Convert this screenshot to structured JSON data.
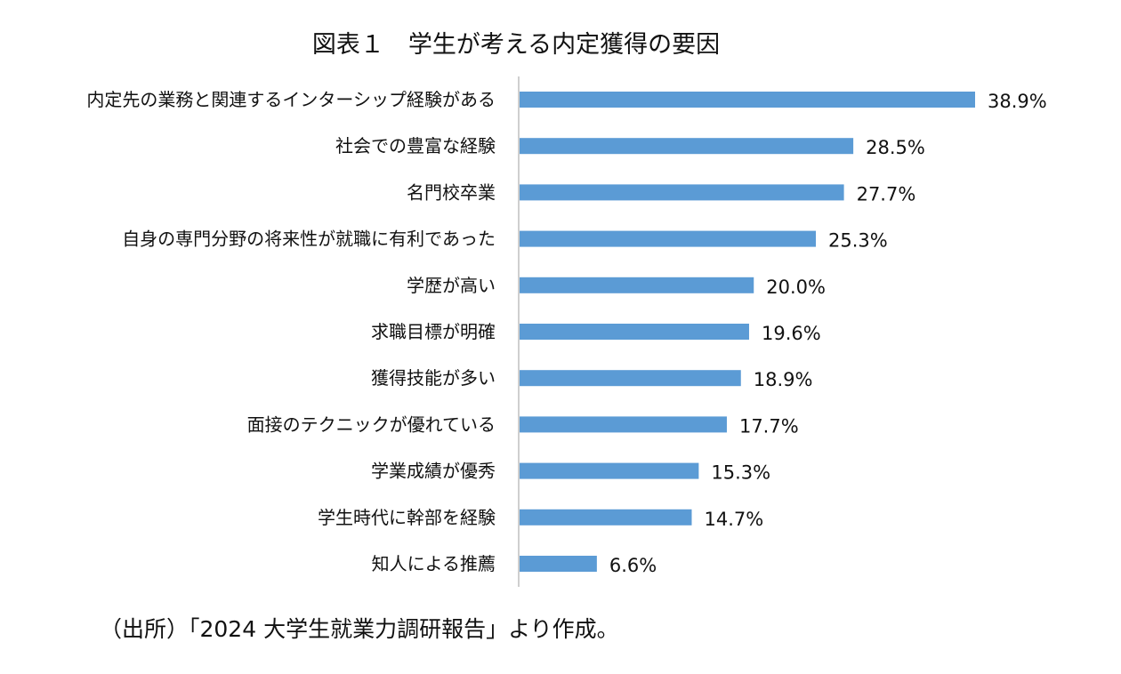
{
  "title": "図表１　学生が考える内定獲得の要因",
  "source": "（出所）「2024 大学生就業力調研報告」より作成。",
  "colors": {
    "bar": "#5b9bd5",
    "axis": "#bfbfbf"
  },
  "chart_data": {
    "type": "bar",
    "orientation": "horizontal",
    "title": "図表１　学生が考える内定獲得の要因",
    "xlabel": "",
    "ylabel": "",
    "xlim": [
      0,
      40
    ],
    "grid": false,
    "legend": "none",
    "categories": [
      "内定先の業務と関連するインターシップ経験がある",
      "社会での豊富な経験",
      "名門校卒業",
      "自身の専門分野の将来性が就職に有利であった",
      "学歴が高い",
      "求職目標が明確",
      "獲得技能が多い",
      "面接のテクニックが優れている",
      "学業成績が優秀",
      "学生時代に幹部を経験",
      "知人による推薦"
    ],
    "values": [
      38.9,
      28.5,
      27.7,
      25.3,
      20.0,
      19.6,
      18.9,
      17.7,
      15.3,
      14.7,
      6.6
    ],
    "value_labels": [
      "38.9%",
      "28.5%",
      "27.7%",
      "25.3%",
      "20.0%",
      "19.6%",
      "18.9%",
      "17.7%",
      "15.3%",
      "14.7%",
      "6.6%"
    ]
  }
}
